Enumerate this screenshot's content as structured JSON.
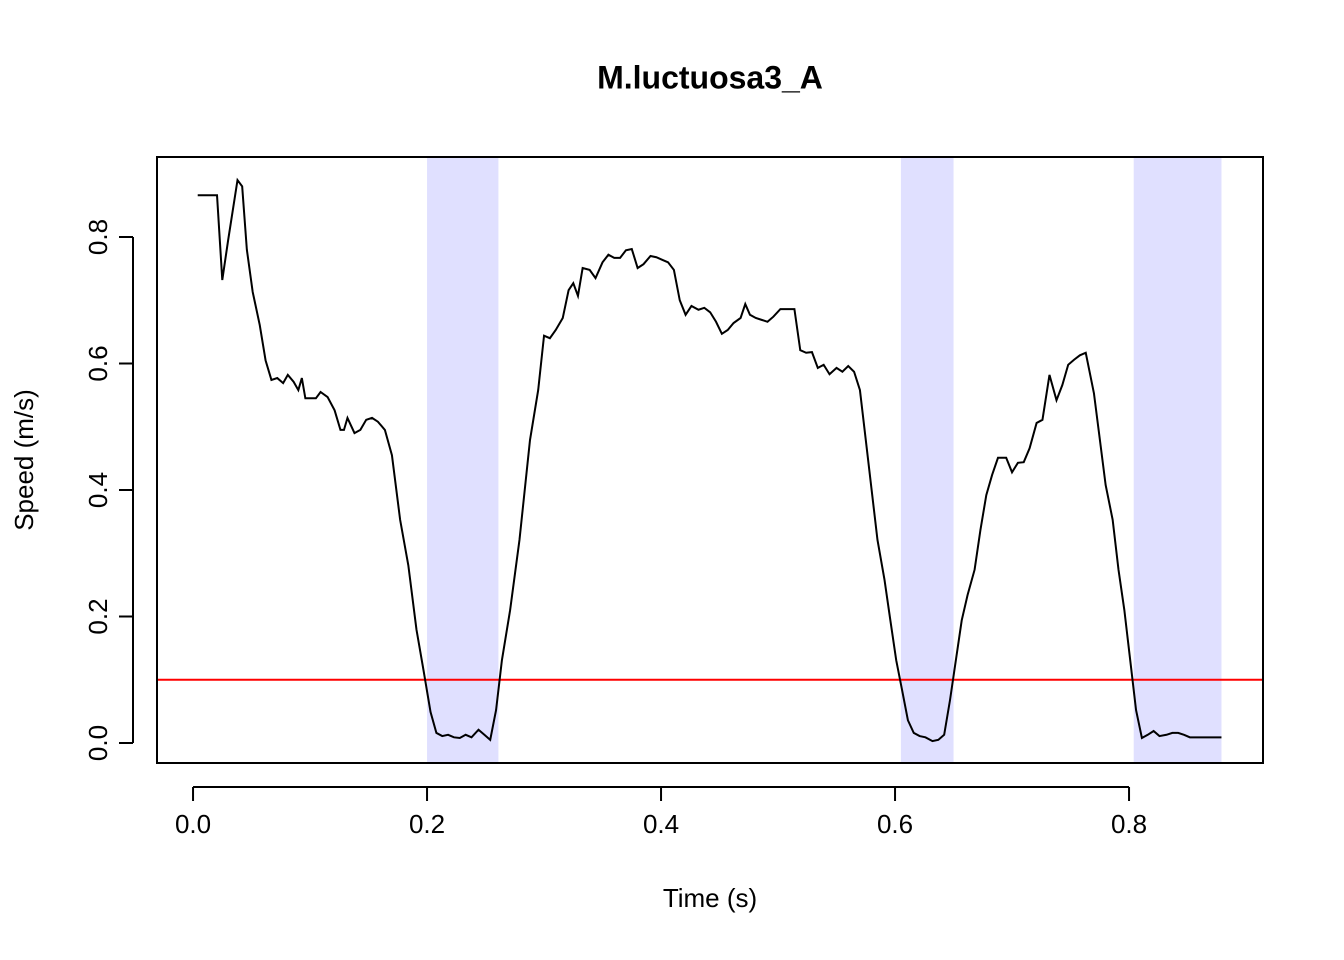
{
  "chart_data": {
    "type": "line",
    "title": "M.luctuosa3_A",
    "x_label": "Time (s)",
    "y_label": "Speed (m/s)",
    "xlim": [
      -0.0308,
      0.9145
    ],
    "ylim": [
      -0.0316,
      0.9265
    ],
    "xticks": [
      {
        "value": 0,
        "label": "0.0"
      },
      0.2,
      0.4,
      0.6,
      0.8
    ],
    "yticks": [
      {
        "value": 0,
        "label": "0.0"
      },
      0.2,
      0.4,
      0.6,
      0.8
    ],
    "color": "#000000",
    "bands": [
      [
        0.2,
        0.261
      ],
      [
        0.605,
        0.65
      ],
      [
        0.804,
        0.879
      ]
    ],
    "band_color": "#e0e0ff",
    "threshold": 0.1,
    "threshold_color": "#ff0000",
    "x": [
      0.004,
      0.0205,
      0.025,
      0.03,
      0.038,
      0.042,
      0.046,
      0.051,
      0.057,
      0.062,
      0.067,
      0.072,
      0.077,
      0.081,
      0.086,
      0.09,
      0.093,
      0.096,
      0.105,
      0.109,
      0.115,
      0.121,
      0.126,
      0.129,
      0.132,
      0.138,
      0.143,
      0.148,
      0.153,
      0.158,
      0.164,
      0.17,
      0.177,
      0.184,
      0.191,
      0.197,
      0.203,
      0.208,
      0.213,
      0.218,
      0.223,
      0.228,
      0.233,
      0.238,
      0.244,
      0.249,
      0.254,
      0.259,
      0.264,
      0.271,
      0.279,
      0.288,
      0.295,
      0.3,
      0.305,
      0.31,
      0.316,
      0.321,
      0.325,
      0.329,
      0.333,
      0.339,
      0.344,
      0.35,
      0.355,
      0.36,
      0.365,
      0.37,
      0.375,
      0.38,
      0.385,
      0.391,
      0.396,
      0.401,
      0.406,
      0.411,
      0.416,
      0.421,
      0.426,
      0.432,
      0.437,
      0.442,
      0.447,
      0.452,
      0.457,
      0.462,
      0.468,
      0.472,
      0.476,
      0.481,
      0.486,
      0.491,
      0.496,
      0.502,
      0.514,
      0.519,
      0.524,
      0.529,
      0.534,
      0.539,
      0.544,
      0.55,
      0.555,
      0.56,
      0.565,
      0.57,
      0.575,
      0.58,
      0.585,
      0.591,
      0.596,
      0.601,
      0.606,
      0.611,
      0.616,
      0.621,
      0.626,
      0.632,
      0.637,
      0.642,
      0.647,
      0.652,
      0.657,
      0.662,
      0.668,
      0.673,
      0.678,
      0.683,
      0.688,
      0.695,
      0.7,
      0.705,
      0.71,
      0.715,
      0.721,
      0.726,
      0.732,
      0.738,
      0.743,
      0.748,
      0.753,
      0.758,
      0.763,
      0.77,
      0.774,
      0.78,
      0.786,
      0.791,
      0.796,
      0.801,
      0.806,
      0.811,
      0.816,
      0.821,
      0.826,
      0.832,
      0.837,
      0.842,
      0.847,
      0.852,
      0.861,
      0.879
    ],
    "values": [
      0.866,
      0.866,
      0.732,
      0.795,
      0.89,
      0.88,
      0.78,
      0.713,
      0.661,
      0.605,
      0.574,
      0.577,
      0.569,
      0.582,
      0.571,
      0.558,
      0.577,
      0.545,
      0.545,
      0.555,
      0.547,
      0.526,
      0.495,
      0.495,
      0.514,
      0.49,
      0.495,
      0.511,
      0.514,
      0.508,
      0.495,
      0.455,
      0.353,
      0.281,
      0.179,
      0.115,
      0.049,
      0.016,
      0.011,
      0.013,
      0.009,
      0.008,
      0.013,
      0.009,
      0.021,
      0.013,
      0.005,
      0.052,
      0.131,
      0.21,
      0.321,
      0.479,
      0.558,
      0.644,
      0.64,
      0.653,
      0.672,
      0.716,
      0.727,
      0.707,
      0.751,
      0.748,
      0.735,
      0.76,
      0.772,
      0.767,
      0.767,
      0.779,
      0.781,
      0.751,
      0.757,
      0.77,
      0.768,
      0.764,
      0.76,
      0.748,
      0.7,
      0.677,
      0.691,
      0.685,
      0.688,
      0.681,
      0.666,
      0.647,
      0.653,
      0.664,
      0.672,
      0.694,
      0.677,
      0.672,
      0.669,
      0.666,
      0.674,
      0.686,
      0.686,
      0.621,
      0.617,
      0.618,
      0.593,
      0.598,
      0.583,
      0.593,
      0.587,
      0.596,
      0.587,
      0.558,
      0.479,
      0.4,
      0.321,
      0.258,
      0.194,
      0.131,
      0.084,
      0.036,
      0.016,
      0.011,
      0.009,
      0.003,
      0.005,
      0.013,
      0.068,
      0.131,
      0.194,
      0.234,
      0.274,
      0.337,
      0.392,
      0.424,
      0.451,
      0.451,
      0.428,
      0.443,
      0.444,
      0.466,
      0.506,
      0.511,
      0.582,
      0.542,
      0.566,
      0.598,
      0.606,
      0.613,
      0.617,
      0.553,
      0.495,
      0.408,
      0.353,
      0.274,
      0.21,
      0.131,
      0.052,
      0.008,
      0.013,
      0.019,
      0.011,
      0.013,
      0.016,
      0.016,
      0.013,
      0.009,
      0.009,
      0.009
    ]
  }
}
